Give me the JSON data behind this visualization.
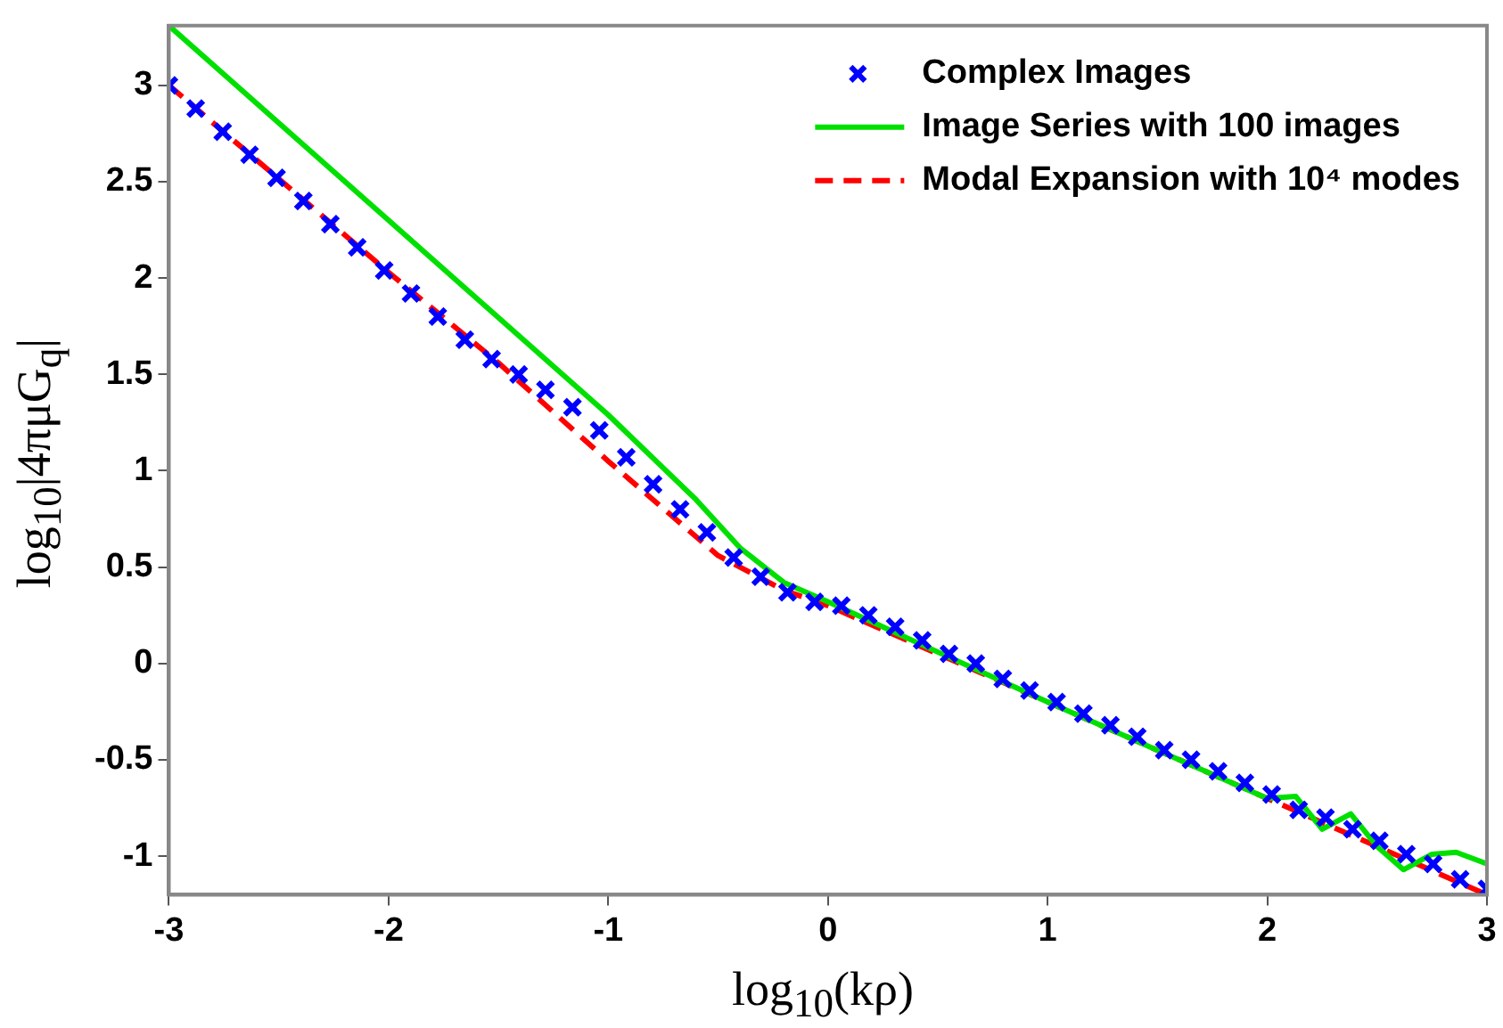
{
  "chart_data": {
    "type": "line",
    "xlabel": "log$_{10}$(kρ)",
    "ylabel": "log$_{10}$|4πμG$_{q}$|",
    "xlim": [
      -3,
      3
    ],
    "ylim": [
      -1.2,
      3.31
    ],
    "xticks": [
      -3,
      -2,
      -1,
      0,
      1,
      2,
      3
    ],
    "yticks": [
      -1,
      -0.5,
      0,
      0.5,
      1,
      1.5,
      2,
      2.5,
      3
    ],
    "grid": false,
    "legend": "top right",
    "series": [
      {
        "name": "Complex Images",
        "type": "scatter",
        "marker": "cross",
        "color": "#0000ff",
        "x": [
          -3,
          -2.878,
          -2.755,
          -2.633,
          -2.51,
          -2.388,
          -2.265,
          -2.143,
          -2.02,
          -1.898,
          -1.776,
          -1.653,
          -1.531,
          -1.408,
          -1.286,
          -1.163,
          -1.041,
          -0.918,
          -0.796,
          -0.673,
          -0.551,
          -0.429,
          -0.306,
          -0.184,
          -0.061,
          0.061,
          0.184,
          0.306,
          0.429,
          0.551,
          0.673,
          0.796,
          0.918,
          1.041,
          1.163,
          1.286,
          1.408,
          1.531,
          1.653,
          1.776,
          1.898,
          2.02,
          2.143,
          2.265,
          2.388,
          2.51,
          2.633,
          2.755,
          2.878,
          3
        ],
        "values": [
          3,
          2.88,
          2.76,
          2.64,
          2.52,
          2.4,
          2.28,
          2.16,
          2.04,
          1.92,
          1.8,
          1.68,
          1.58,
          1.5,
          1.42,
          1.33,
          1.21,
          1.07,
          0.93,
          0.8,
          0.68,
          0.55,
          0.45,
          0.37,
          0.32,
          0.3,
          0.25,
          0.19,
          0.12,
          0.05,
          0,
          -0.08,
          -0.14,
          -0.2,
          -0.26,
          -0.32,
          -0.38,
          -0.45,
          -0.5,
          -0.56,
          -0.62,
          -0.68,
          -0.76,
          -0.8,
          -0.86,
          -0.92,
          -0.99,
          -1.04,
          -1.12,
          -1.17
        ]
      },
      {
        "name": "Image Series with 100 images",
        "type": "line",
        "marker": "none",
        "line_style": "solid",
        "color": "#00e000",
        "x": [
          -3,
          -2,
          -1,
          -0.6,
          -0.4,
          -0.2,
          0,
          1,
          2,
          2.13,
          2.25,
          2.38,
          2.5,
          2.62,
          2.75,
          2.86,
          3
        ],
        "values": [
          3.31,
          2.3,
          1.29,
          0.85,
          0.6,
          0.42,
          0.32,
          -0.2,
          -0.7,
          -0.69,
          -0.86,
          -0.78,
          -0.95,
          -1.07,
          -0.99,
          -0.98,
          -1.04
        ]
      },
      {
        "name": "Modal Expansion with 10⁴ modes",
        "type": "line",
        "marker": "none",
        "line_style": "dashed",
        "color": "#ff0000",
        "x": [
          -3,
          -2,
          -1.5,
          -1,
          -0.5,
          -0.2,
          0,
          1,
          2,
          3
        ],
        "values": [
          3,
          2.03,
          1.56,
          1.05,
          0.56,
          0.38,
          0.3,
          -0.2,
          -0.7,
          -1.2
        ]
      }
    ]
  }
}
